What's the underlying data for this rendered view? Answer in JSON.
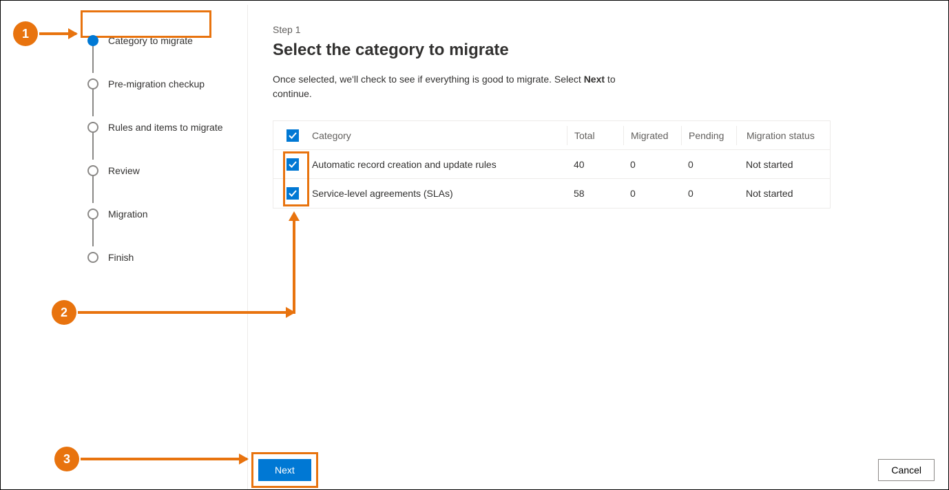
{
  "colors": {
    "primary": "#0078d4",
    "highlight": "#e8730e",
    "border": "#edebe9",
    "text_muted": "#605e5c",
    "step_idle": "#8a8886"
  },
  "stepper": {
    "steps": [
      {
        "label": "Category to migrate",
        "active": true
      },
      {
        "label": "Pre-migration checkup",
        "active": false
      },
      {
        "label": "Rules and items to migrate",
        "active": false
      },
      {
        "label": "Review",
        "active": false
      },
      {
        "label": "Migration",
        "active": false
      },
      {
        "label": "Finish",
        "active": false
      }
    ]
  },
  "main": {
    "step_indicator": "Step 1",
    "title": "Select the category to migrate",
    "desc_pre": "Once selected, we'll check to see if everything is good to migrate. Select ",
    "desc_bold": "Next",
    "desc_post": " to continue."
  },
  "table": {
    "headers": {
      "category": "Category",
      "total": "Total",
      "migrated": "Migrated",
      "pending": "Pending",
      "status": "Migration status"
    },
    "rows": [
      {
        "checked": true,
        "category": "Automatic record creation and update rules",
        "total": "40",
        "migrated": "0",
        "pending": "0",
        "status": "Not started"
      },
      {
        "checked": true,
        "category": "Service-level agreements (SLAs)",
        "total": "58",
        "migrated": "0",
        "pending": "0",
        "status": "Not started"
      }
    ]
  },
  "footer": {
    "next": "Next",
    "cancel": "Cancel"
  },
  "callouts": {
    "c1": "1",
    "c2": "2",
    "c3": "3"
  }
}
